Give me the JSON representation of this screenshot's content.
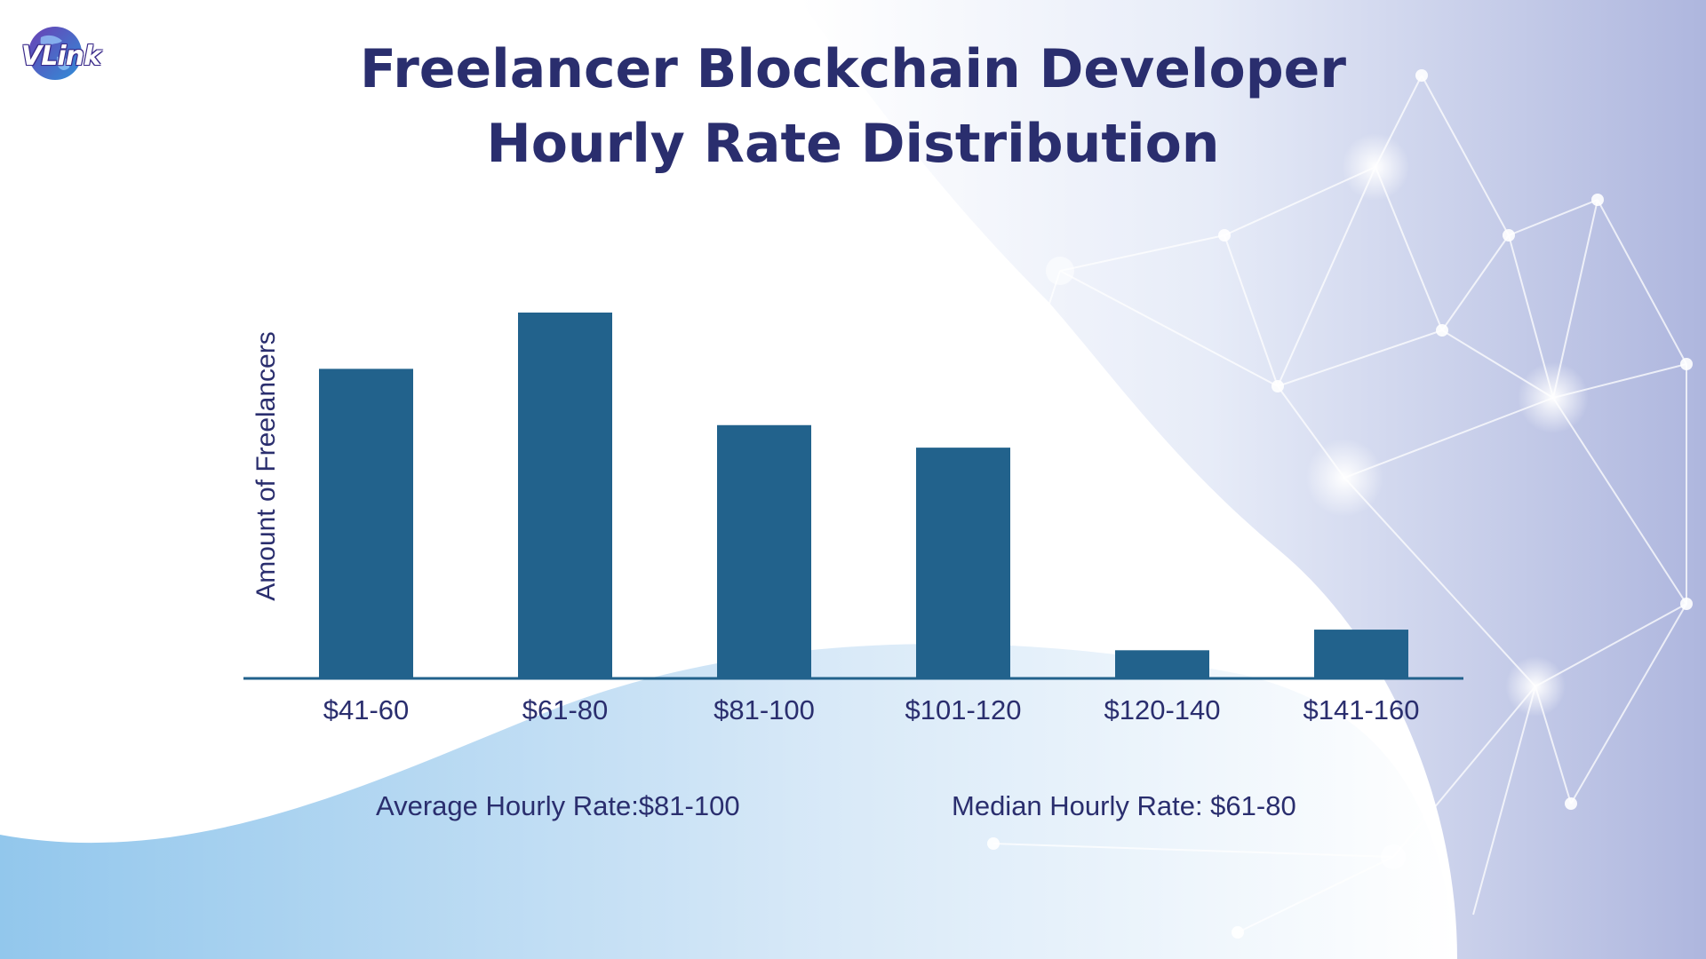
{
  "brand": {
    "logo_text": "VLink",
    "colors": {
      "title": "#2a2e6e",
      "bar": "#22628c",
      "axis": "#22628c",
      "text": "#2a2e6e"
    }
  },
  "title_lines": [
    "Freelancer Blockchain Developer",
    "Hourly Rate Distribution"
  ],
  "stats": {
    "average": "Average Hourly Rate:$81-100",
    "median": "Median Hourly Rate: $61-80"
  },
  "chart_data": {
    "type": "bar",
    "title": "Freelancer Blockchain Developer Hourly Rate Distribution",
    "xlabel": "",
    "ylabel": "Amount of Freelancers",
    "categories": [
      "$41-60",
      "$61-80",
      "$81-100",
      "$101-120",
      "$120-140",
      "$141-160"
    ],
    "values": [
      33,
      39,
      27,
      24.6,
      3,
      5.2
    ],
    "ylim": [
      0,
      39
    ],
    "grid": false,
    "legend": "none"
  }
}
